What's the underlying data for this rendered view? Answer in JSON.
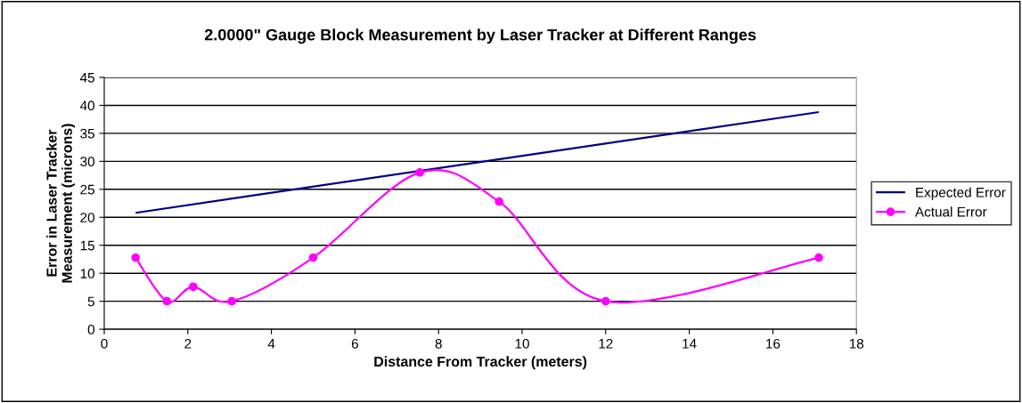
{
  "chart_data": {
    "type": "line",
    "title": "2.0000\" Gauge Block Measurement by Laser Tracker at Different Ranges",
    "xlabel": "Distance From Tracker (meters)",
    "ylabel": "Error in Laser Tracker\nMeasurement (microns)",
    "series": [
      {
        "name": "Expected Error",
        "color": "#000080",
        "marker": "none",
        "x": [
          0.75,
          17.1
        ],
        "values": [
          20.8,
          38.8
        ]
      },
      {
        "name": "Actual Error",
        "color": "#ff00ff",
        "marker": "circle",
        "x": [
          0.75,
          1.5,
          2.13,
          3.05,
          5,
          7.55,
          9.45,
          12,
          17.1
        ],
        "values": [
          12.8,
          5,
          7.6,
          5,
          12.8,
          28,
          22.8,
          5,
          12.8
        ]
      }
    ],
    "xlim": [
      0,
      18
    ],
    "xticks": [
      0,
      2,
      4,
      6,
      8,
      10,
      12,
      14,
      16,
      18
    ],
    "ylim": [
      0,
      45
    ],
    "yticks": [
      0,
      5,
      10,
      15,
      20,
      25,
      30,
      35,
      40,
      45
    ],
    "grid": "y",
    "legend": "right"
  }
}
